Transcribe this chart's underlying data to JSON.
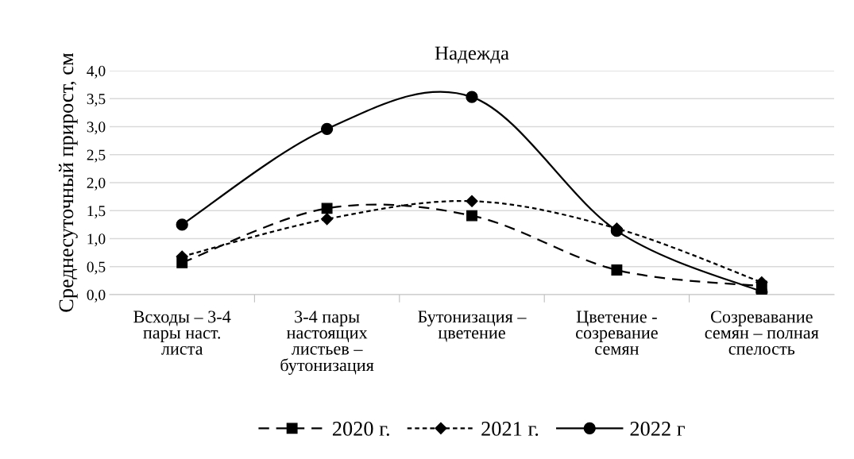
{
  "chart_data": {
    "type": "line",
    "title": "Надежда",
    "ylabel": "Среднесуточный прирост, см",
    "categories": [
      "Всходы – 3-4\nпары наст.\nлиста",
      "3-4 пары\nнастоящих\nлистьев –\nбутонизация",
      "Бутонизация –\nцветение",
      "Цветение -\nсозревание\nсемян",
      "Созревавание\nсемян – полная\nспелость"
    ],
    "series": [
      {
        "name": "2020 г.",
        "color": "#000000",
        "marker": "square",
        "line_style": "dashed",
        "values": [
          0.57,
          1.54,
          1.41,
          0.44,
          0.15
        ]
      },
      {
        "name": "2021 г.",
        "color": "#000000",
        "marker": "diamond",
        "line_style": "dotted",
        "values": [
          0.68,
          1.35,
          1.67,
          1.18,
          0.22
        ]
      },
      {
        "name": "2022 г",
        "color": "#000000",
        "marker": "circle",
        "line_style": "solid",
        "values": [
          1.25,
          2.96,
          3.53,
          1.14,
          0.05
        ]
      }
    ],
    "ylim": [
      0,
      4
    ],
    "yticks": [
      {
        "value": 0,
        "label": "0,0"
      },
      {
        "value": 0.5,
        "label": "0,5"
      },
      {
        "value": 1,
        "label": "1,0"
      },
      {
        "value": 1.5,
        "label": "1,5"
      },
      {
        "value": 2,
        "label": "2,0"
      },
      {
        "value": 2.5,
        "label": "2,5"
      },
      {
        "value": 3,
        "label": "3,0"
      },
      {
        "value": 3.5,
        "label": "3,5"
      },
      {
        "value": 4,
        "label": "4,0"
      }
    ],
    "grid": "y",
    "legend": "bottom"
  }
}
